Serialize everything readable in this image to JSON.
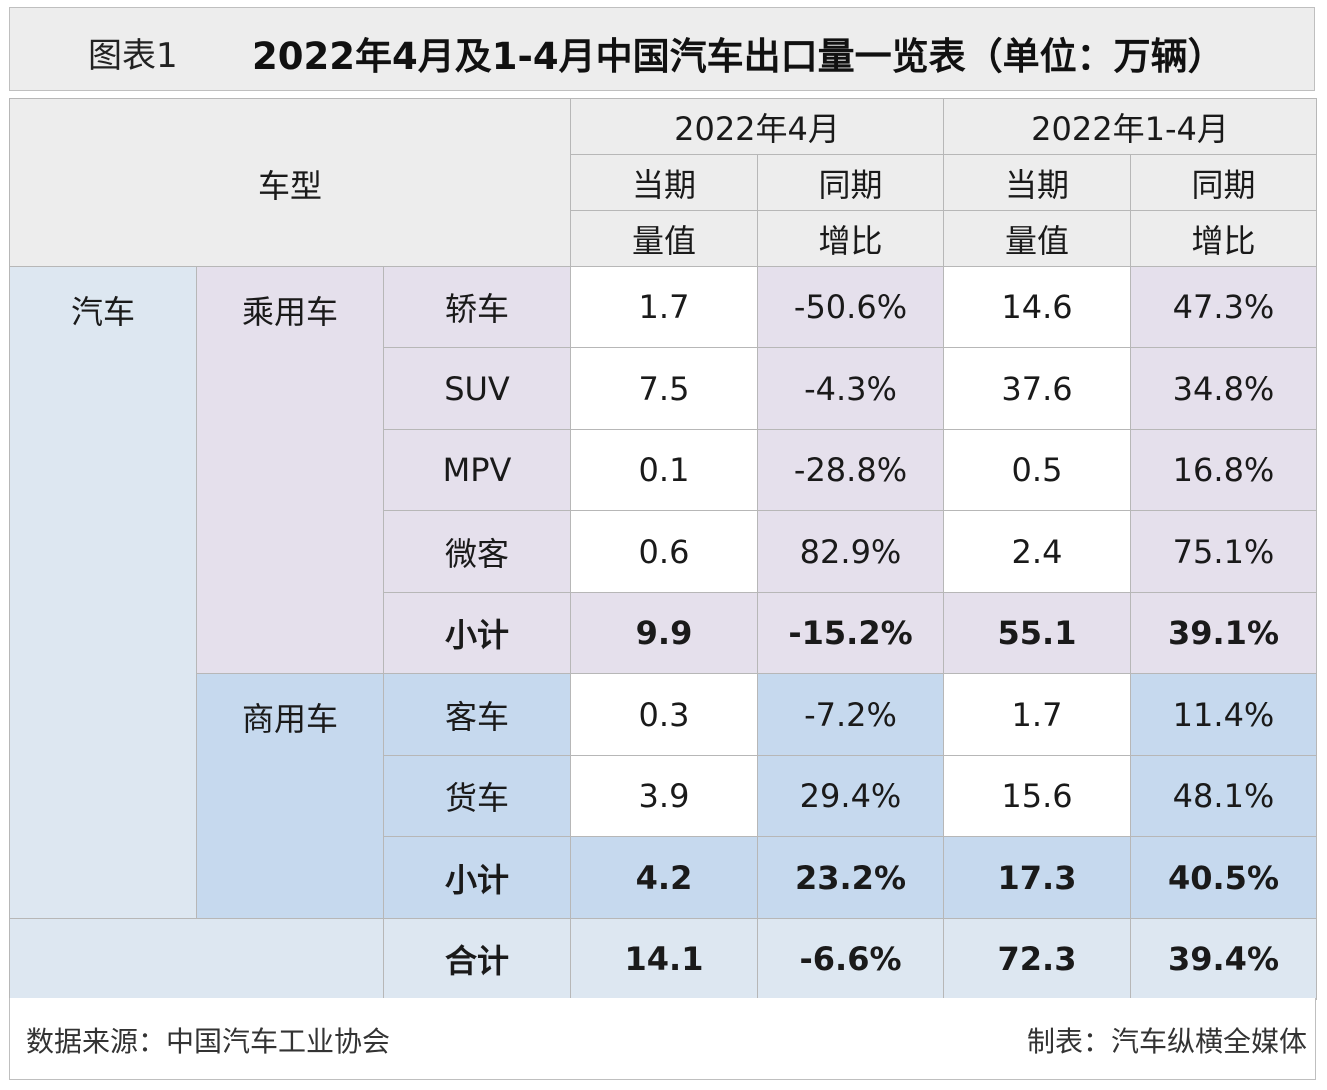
{
  "title": {
    "prefix": "图表1",
    "main": "2022年4月及1-4月中国汽车出口量一览表（单位：万辆）"
  },
  "header": {
    "vehicle_type": "车型",
    "period_april": "2022年4月",
    "period_jan_apr": "2022年1-4月",
    "current_value_line1": "当期",
    "current_value_line2": "量值",
    "yoy_line1": "同期",
    "yoy_line2": "增比"
  },
  "categories": {
    "auto": "汽车",
    "passenger": "乘用车",
    "commercial": "商用车"
  },
  "rows": [
    {
      "name": "轿车",
      "apr_value": "1.7",
      "apr_yoy": "-50.6%",
      "ytd_value": "14.6",
      "ytd_yoy": "47.3%"
    },
    {
      "name": "SUV",
      "apr_value": "7.5",
      "apr_yoy": "-4.3%",
      "ytd_value": "37.6",
      "ytd_yoy": "34.8%"
    },
    {
      "name": "MPV",
      "apr_value": "0.1",
      "apr_yoy": "-28.8%",
      "ytd_value": "0.5",
      "ytd_yoy": "16.8%"
    },
    {
      "name": "微客",
      "apr_value": "0.6",
      "apr_yoy": "82.9%",
      "ytd_value": "2.4",
      "ytd_yoy": "75.1%"
    },
    {
      "name": "小计",
      "apr_value": "9.9",
      "apr_yoy": "-15.2%",
      "ytd_value": "55.1",
      "ytd_yoy": "39.1%"
    },
    {
      "name": "客车",
      "apr_value": "0.3",
      "apr_yoy": "-7.2%",
      "ytd_value": "1.7",
      "ytd_yoy": "11.4%"
    },
    {
      "name": "货车",
      "apr_value": "3.9",
      "apr_yoy": "29.4%",
      "ytd_value": "15.6",
      "ytd_yoy": "48.1%"
    },
    {
      "name": "小计",
      "apr_value": "4.2",
      "apr_yoy": "23.2%",
      "ytd_value": "17.3",
      "ytd_yoy": "40.5%"
    },
    {
      "name": "合计",
      "apr_value": "14.1",
      "apr_yoy": "-6.6%",
      "ytd_value": "72.3",
      "ytd_yoy": "39.4%"
    }
  ],
  "footer": {
    "source": "数据来源：中国汽车工业协会",
    "maker": "制表：汽车纵横全媒体"
  },
  "colors": {
    "header_bg": "#ededed",
    "auto_bg": "#dde7f1",
    "passenger_bg": "#e5e0ec",
    "commercial_bg": "#c6d9ee",
    "border": "#b7b7b7"
  }
}
